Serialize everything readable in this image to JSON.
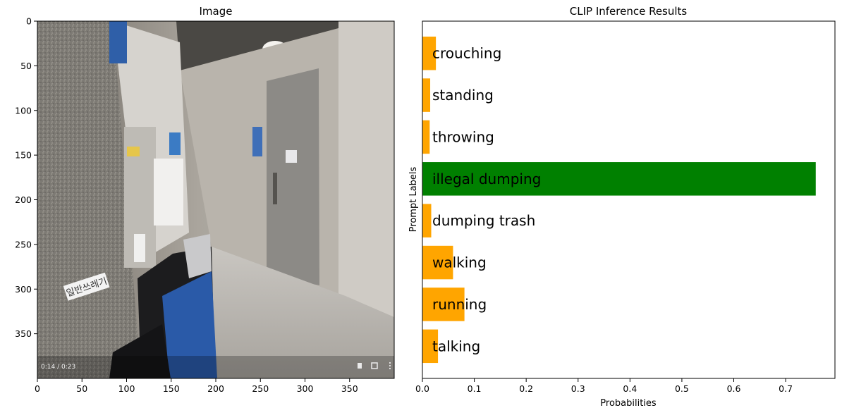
{
  "figure": {
    "left_panel": {
      "title": "Image",
      "overlay_text": {
        "timestamp": "0:14 / 0:23",
        "sign": "일반쓰레기"
      },
      "x_ticks": [
        0,
        50,
        100,
        150,
        200,
        250,
        300,
        350
      ],
      "y_ticks": [
        0,
        50,
        100,
        150,
        200,
        250,
        300,
        350
      ],
      "xlim": [
        0,
        400
      ],
      "ylim": [
        400,
        0
      ]
    }
  },
  "chart_data": {
    "type": "bar",
    "orientation": "horizontal",
    "title": "CLIP Inference Results",
    "xlabel": "Probabilities",
    "ylabel": "Prompt Labels",
    "categories": [
      "crouching",
      "standing",
      "throwing",
      "illegal dumping",
      "dumping trash",
      "walking",
      "running",
      "talking"
    ],
    "values": [
      0.026,
      0.015,
      0.014,
      0.758,
      0.017,
      0.059,
      0.081,
      0.03
    ],
    "colors": [
      "#ffa500",
      "#ffa500",
      "#ffa500",
      "#008000",
      "#ffa500",
      "#ffa500",
      "#ffa500",
      "#ffa500"
    ],
    "xlim": [
      0,
      0.795
    ],
    "x_ticks": [
      0.0,
      0.1,
      0.2,
      0.3,
      0.4,
      0.5,
      0.6,
      0.7
    ],
    "x_tick_labels": [
      "0.0",
      "0.1",
      "0.2",
      "0.3",
      "0.4",
      "0.5",
      "0.6",
      "0.7"
    ],
    "grid": false
  }
}
